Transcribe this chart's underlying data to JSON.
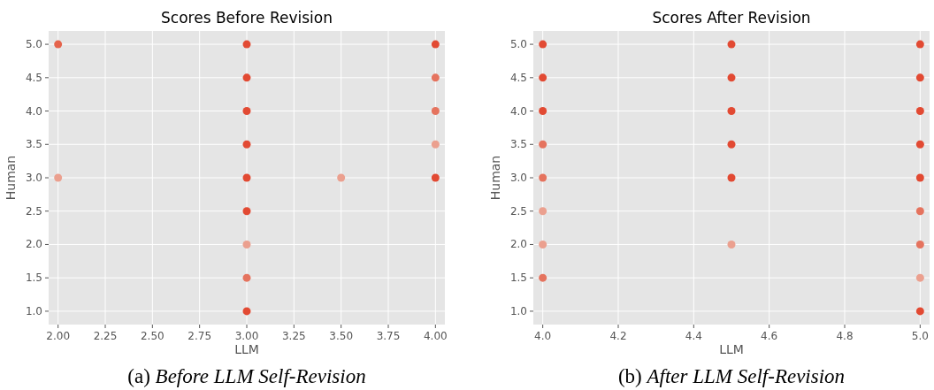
{
  "chart_data": [
    {
      "type": "scatter",
      "title": "Scores Before Revision",
      "xlabel": "LLM",
      "ylabel": "Human",
      "xlim": [
        1.95,
        4.05
      ],
      "ylim": [
        0.8,
        5.2
      ],
      "xticks": [
        {
          "value": 2,
          "label": "2.00"
        },
        {
          "value": 2.25,
          "label": "2.25"
        },
        {
          "value": 2.5,
          "label": "2.50"
        },
        {
          "value": 2.75,
          "label": "2.75"
        },
        {
          "value": 3,
          "label": "3.00"
        },
        {
          "value": 3.25,
          "label": "3.25"
        },
        {
          "value": 3.5,
          "label": "3.50"
        },
        {
          "value": 3.75,
          "label": "3.75"
        },
        {
          "value": 4,
          "label": "4.00"
        }
      ],
      "yticks": [
        {
          "value": 1,
          "label": "1.0"
        },
        {
          "value": 1.5,
          "label": "1.5"
        },
        {
          "value": 2,
          "label": "2.0"
        },
        {
          "value": 2.5,
          "label": "2.5"
        },
        {
          "value": 3,
          "label": "3.0"
        },
        {
          "value": 3.5,
          "label": "3.5"
        },
        {
          "value": 4,
          "label": "4.0"
        },
        {
          "value": 4.5,
          "label": "4.5"
        },
        {
          "value": 5,
          "label": "5.0"
        }
      ],
      "grid": true,
      "marker": "circle",
      "annotations": [
        "(a) Before LLM Self-Revision"
      ],
      "series": [
        {
          "x": [
            2,
            2,
            3,
            3,
            3,
            3,
            3,
            3,
            3,
            3,
            3,
            3.5,
            4,
            4,
            4,
            4,
            4
          ],
          "values": [
            5,
            3,
            5,
            4.5,
            4,
            3.5,
            3,
            2.5,
            2,
            1.5,
            1,
            3,
            5,
            4.5,
            4,
            3.5,
            3
          ],
          "colors": [
            "#e5634b",
            "#eba08f",
            "#e24a33",
            "#e24a33",
            "#e24a33",
            "#e24a33",
            "#e24a33",
            "#e24a33",
            "#eba08f",
            "#e5735e",
            "#e24a33",
            "#eba08f",
            "#e24a33",
            "#e5735e",
            "#e5735e",
            "#eba08f",
            "#e24a33"
          ]
        }
      ]
    },
    {
      "type": "scatter",
      "title": "Scores After Revision",
      "xlabel": "LLM",
      "ylabel": "Human",
      "xlim": [
        3.975,
        5.025
      ],
      "ylim": [
        0.8,
        5.2
      ],
      "xticks": [
        {
          "value": 4,
          "label": "4.0"
        },
        {
          "value": 4.2,
          "label": "4.2"
        },
        {
          "value": 4.4,
          "label": "4.4"
        },
        {
          "value": 4.6,
          "label": "4.6"
        },
        {
          "value": 4.8,
          "label": "4.8"
        },
        {
          "value": 5,
          "label": "5.0"
        }
      ],
      "yticks": [
        {
          "value": 1,
          "label": "1.0"
        },
        {
          "value": 1.5,
          "label": "1.5"
        },
        {
          "value": 2,
          "label": "2.0"
        },
        {
          "value": 2.5,
          "label": "2.5"
        },
        {
          "value": 3,
          "label": "3.0"
        },
        {
          "value": 3.5,
          "label": "3.5"
        },
        {
          "value": 4,
          "label": "4.0"
        },
        {
          "value": 4.5,
          "label": "4.5"
        },
        {
          "value": 5,
          "label": "5.0"
        }
      ],
      "grid": true,
      "marker": "circle",
      "annotations": [
        "(b) After LLM Self-Revision"
      ],
      "series": [
        {
          "x": [
            4,
            4,
            4,
            4,
            4,
            4,
            4,
            4,
            4.5,
            4.5,
            4.5,
            4.5,
            4.5,
            4.5,
            5,
            5,
            5,
            5,
            5,
            5,
            5,
            5,
            5
          ],
          "values": [
            5,
            4.5,
            4,
            3.5,
            3,
            2.5,
            2,
            1.5,
            5,
            4.5,
            4,
            3.5,
            3,
            2,
            5,
            4.5,
            4,
            3.5,
            3,
            2.5,
            2,
            1.5,
            1
          ],
          "colors": [
            "#e24a33",
            "#e24a33",
            "#e24a33",
            "#e5735e",
            "#e5735e",
            "#eba08f",
            "#eba08f",
            "#e5735e",
            "#e24a33",
            "#e24a33",
            "#e24a33",
            "#e24a33",
            "#e24a33",
            "#eba08f",
            "#e24a33",
            "#e24a33",
            "#e24a33",
            "#e24a33",
            "#e24a33",
            "#e5735e",
            "#e5735e",
            "#eba08f",
            "#e24a33"
          ]
        }
      ]
    }
  ]
}
